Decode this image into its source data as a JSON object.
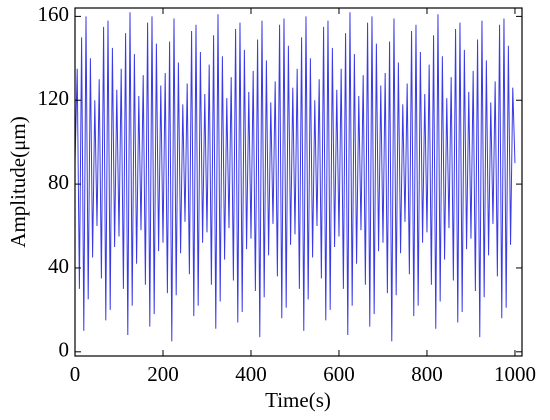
{
  "chart_data": {
    "type": "line",
    "xlabel": "Time(s)",
    "ylabel": "Amplitude(μm)",
    "x": [
      0,
      5,
      10,
      15,
      20,
      25,
      30,
      35,
      40,
      45,
      50,
      55,
      60,
      65,
      70,
      75,
      80,
      85,
      90,
      95,
      100,
      105,
      110,
      115,
      120,
      125,
      130,
      135,
      140,
      145,
      150,
      155,
      160,
      165,
      170,
      175,
      180,
      185,
      190,
      195,
      200,
      205,
      210,
      215,
      220,
      225,
      230,
      235,
      240,
      245,
      250,
      255,
      260,
      265,
      270,
      275,
      280,
      285,
      290,
      295,
      300,
      305,
      310,
      315,
      320,
      325,
      330,
      335,
      340,
      345,
      350,
      355,
      360,
      365,
      370,
      375,
      380,
      385,
      390,
      395,
      400,
      405,
      410,
      415,
      420,
      425,
      430,
      435,
      440,
      445,
      450,
      455,
      460,
      465,
      470,
      475,
      480,
      485,
      490,
      495,
      500,
      505,
      510,
      515,
      520,
      525,
      530,
      535,
      540,
      545,
      550,
      555,
      560,
      565,
      570,
      575,
      580,
      585,
      590,
      595,
      600,
      605,
      610,
      615,
      620,
      625,
      630,
      635,
      640,
      645,
      650,
      655,
      660,
      665,
      670,
      675,
      680,
      685,
      690,
      695,
      700,
      705,
      710,
      715,
      720,
      725,
      730,
      735,
      740,
      745,
      750,
      755,
      760,
      765,
      770,
      775,
      780,
      785,
      790,
      795,
      800,
      805,
      810,
      815,
      820,
      825,
      830,
      835,
      840,
      845,
      850,
      855,
      860,
      865,
      870,
      875,
      880,
      885,
      890,
      895,
      900,
      905,
      910,
      915,
      920,
      925,
      930,
      935,
      940,
      945,
      950,
      955,
      960,
      965,
      970,
      975,
      980,
      985,
      990,
      995,
      1000
    ],
    "series": [
      {
        "name": "Amplitude",
        "color": "#3a3ae6",
        "values": [
          90,
          135,
          30,
          150,
          10,
          160,
          25,
          140,
          45,
          120,
          60,
          130,
          35,
          155,
          15,
          158,
          20,
          145,
          50,
          125,
          55,
          135,
          30,
          152,
          8,
          162,
          22,
          142,
          42,
          122,
          58,
          132,
          32,
          157,
          12,
          160,
          18,
          147,
          48,
          127,
          52,
          133,
          28,
          148,
          5,
          159,
          27,
          138,
          47,
          118,
          62,
          128,
          37,
          153,
          17,
          156,
          22,
          143,
          52,
          123,
          57,
          137,
          32,
          151,
          11,
          161,
          24,
          141,
          44,
          121,
          59,
          131,
          34,
          154,
          14,
          157,
          19,
          144,
          49,
          124,
          54,
          134,
          29,
          149,
          7,
          158,
          26,
          139,
          46,
          119,
          61,
          129,
          36,
          156,
          16,
          159,
          21,
          146,
          51,
          126,
          56,
          135,
          30,
          150,
          10,
          160,
          25,
          140,
          45,
          120,
          60,
          130,
          35,
          155,
          15,
          158,
          20,
          145,
          50,
          125,
          55,
          135,
          30,
          152,
          8,
          162,
          22,
          142,
          42,
          122,
          58,
          132,
          32,
          157,
          12,
          160,
          18,
          147,
          48,
          127,
          52,
          133,
          28,
          148,
          5,
          159,
          27,
          138,
          47,
          118,
          62,
          128,
          37,
          153,
          17,
          156,
          22,
          143,
          52,
          123,
          57,
          137,
          32,
          151,
          11,
          161,
          24,
          141,
          44,
          121,
          59,
          131,
          34,
          154,
          14,
          157,
          19,
          144,
          49,
          124,
          54,
          134,
          29,
          149,
          7,
          158,
          26,
          139,
          46,
          119,
          61,
          129,
          36,
          156,
          16,
          159,
          21,
          146,
          51,
          126,
          90
        ]
      }
    ],
    "xlim": [
      0,
      1016
    ],
    "ylim": [
      -2,
      164
    ],
    "xticks": [
      0,
      200,
      400,
      600,
      800,
      1000
    ],
    "yticks": [
      0,
      40,
      80,
      120,
      160
    ]
  }
}
